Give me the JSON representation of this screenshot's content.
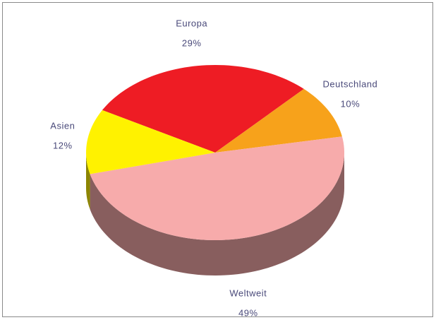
{
  "chart_data": {
    "type": "pie3d",
    "categories": [
      "Europa",
      "Deutschland",
      "Weltweit",
      "Asien"
    ],
    "values": [
      29,
      10,
      49,
      12
    ],
    "value_labels": [
      "29%",
      "10%",
      "49%",
      "12%"
    ],
    "colors": [
      "#ee1c24",
      "#f7a21b",
      "#f7abab",
      "#fff200"
    ]
  }
}
